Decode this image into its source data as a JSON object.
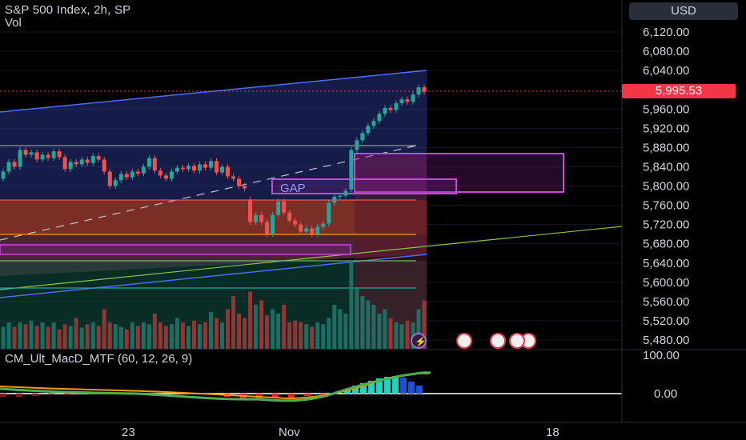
{
  "header": {
    "title": "S&P 500 Index, 2h, SP",
    "vol_label": "Vol"
  },
  "currency": "USD",
  "last_price": "5,995.53",
  "price_axis": [
    "6,120.00",
    "6,080.00",
    "6,040.00",
    "5,960.00",
    "5,920.00",
    "5,880.00",
    "5,840.00",
    "5,800.00",
    "5,760.00",
    "5,720.00",
    "5,680.00",
    "5,640.00",
    "5,600.00",
    "5,560.00",
    "5,520.00",
    "5,480.00"
  ],
  "time_axis": [
    "23",
    "Nov",
    "18"
  ],
  "annotations": {
    "gap_label": "GAP"
  },
  "macd": {
    "label": "CM_Ult_MacD_MTF (60, 12, 26, 9)",
    "axis": [
      "100.00",
      "0.00"
    ]
  },
  "colors": {
    "background": "#000000",
    "up": "#26a69a",
    "down": "#ef5350",
    "channel": "#3b5bdb",
    "price_tag": "#f23645",
    "gap": "#c44bd1"
  },
  "chart_data": {
    "type": "candlestick",
    "symbol": "S&P 500 Index",
    "interval": "2h",
    "ylim": [
      5460,
      6160
    ],
    "last_value": 5995.53,
    "candles": [
      {
        "o": 5815,
        "c": 5830
      },
      {
        "o": 5830,
        "c": 5850
      },
      {
        "o": 5850,
        "c": 5840
      },
      {
        "o": 5840,
        "c": 5875
      },
      {
        "o": 5875,
        "c": 5865
      },
      {
        "o": 5865,
        "c": 5870
      },
      {
        "o": 5870,
        "c": 5855
      },
      {
        "o": 5855,
        "c": 5865
      },
      {
        "o": 5865,
        "c": 5858
      },
      {
        "o": 5858,
        "c": 5872
      },
      {
        "o": 5872,
        "c": 5860
      },
      {
        "o": 5860,
        "c": 5835
      },
      {
        "o": 5835,
        "c": 5850
      },
      {
        "o": 5850,
        "c": 5845
      },
      {
        "o": 5845,
        "c": 5855
      },
      {
        "o": 5855,
        "c": 5848
      },
      {
        "o": 5848,
        "c": 5862
      },
      {
        "o": 5862,
        "c": 5855
      },
      {
        "o": 5855,
        "c": 5830
      },
      {
        "o": 5830,
        "c": 5800
      },
      {
        "o": 5800,
        "c": 5812
      },
      {
        "o": 5812,
        "c": 5825
      },
      {
        "o": 5825,
        "c": 5818
      },
      {
        "o": 5818,
        "c": 5830
      },
      {
        "o": 5830,
        "c": 5826
      },
      {
        "o": 5826,
        "c": 5840
      },
      {
        "o": 5840,
        "c": 5858
      },
      {
        "o": 5858,
        "c": 5832
      },
      {
        "o": 5832,
        "c": 5822
      },
      {
        "o": 5822,
        "c": 5815
      },
      {
        "o": 5815,
        "c": 5830
      },
      {
        "o": 5830,
        "c": 5838
      },
      {
        "o": 5838,
        "c": 5835
      },
      {
        "o": 5835,
        "c": 5842
      },
      {
        "o": 5842,
        "c": 5832
      },
      {
        "o": 5832,
        "c": 5845
      },
      {
        "o": 5845,
        "c": 5838
      },
      {
        "o": 5838,
        "c": 5852
      },
      {
        "o": 5852,
        "c": 5828
      },
      {
        "o": 5828,
        "c": 5840
      },
      {
        "o": 5840,
        "c": 5820
      },
      {
        "o": 5820,
        "c": 5815
      },
      {
        "o": 5815,
        "c": 5800
      },
      {
        "o": 5800,
        "c": 5795
      },
      {
        "o": 5772,
        "c": 5725
      },
      {
        "o": 5725,
        "c": 5740
      },
      {
        "o": 5740,
        "c": 5725
      },
      {
        "o": 5725,
        "c": 5700
      },
      {
        "o": 5700,
        "c": 5740
      },
      {
        "o": 5740,
        "c": 5768
      },
      {
        "o": 5768,
        "c": 5745
      },
      {
        "o": 5745,
        "c": 5728
      },
      {
        "o": 5728,
        "c": 5720
      },
      {
        "o": 5720,
        "c": 5705
      },
      {
        "o": 5705,
        "c": 5712
      },
      {
        "o": 5712,
        "c": 5700
      },
      {
        "o": 5700,
        "c": 5715
      },
      {
        "o": 5715,
        "c": 5722
      },
      {
        "o": 5722,
        "c": 5765
      },
      {
        "o": 5765,
        "c": 5778
      },
      {
        "o": 5778,
        "c": 5780
      },
      {
        "o": 5780,
        "c": 5790
      },
      {
        "o": 5793,
        "c": 5875
      },
      {
        "o": 5875,
        "c": 5895
      },
      {
        "o": 5895,
        "c": 5910
      },
      {
        "o": 5910,
        "c": 5925
      },
      {
        "o": 5925,
        "c": 5935
      },
      {
        "o": 5935,
        "c": 5950
      },
      {
        "o": 5950,
        "c": 5962
      },
      {
        "o": 5962,
        "c": 5958
      },
      {
        "o": 5958,
        "c": 5972
      },
      {
        "o": 5972,
        "c": 5980
      },
      {
        "o": 5980,
        "c": 5975
      },
      {
        "o": 5975,
        "c": 5990
      },
      {
        "o": 5990,
        "c": 6005
      },
      {
        "o": 6005,
        "c": 5995.53
      }
    ],
    "volume": [
      0.25,
      0.3,
      0.25,
      0.3,
      0.28,
      0.32,
      0.26,
      0.3,
      0.25,
      0.3,
      0.22,
      0.28,
      0.26,
      0.35,
      0.24,
      0.28,
      0.3,
      0.26,
      0.45,
      0.3,
      0.28,
      0.25,
      0.22,
      0.3,
      0.26,
      0.3,
      0.28,
      0.4,
      0.3,
      0.26,
      0.28,
      0.35,
      0.3,
      0.26,
      0.32,
      0.28,
      0.3,
      0.42,
      0.35,
      0.3,
      0.45,
      0.6,
      0.4,
      0.35,
      0.65,
      0.5,
      0.55,
      0.38,
      0.45,
      0.4,
      0.5,
      0.3,
      0.32,
      0.3,
      0.28,
      0.25,
      0.3,
      0.28,
      0.35,
      0.5,
      0.45,
      0.4,
      1.0,
      0.7,
      0.6,
      0.55,
      0.5,
      0.4,
      0.45,
      0.35,
      0.3,
      0.28,
      0.32,
      0.3,
      0.45,
      0.55
    ]
  }
}
